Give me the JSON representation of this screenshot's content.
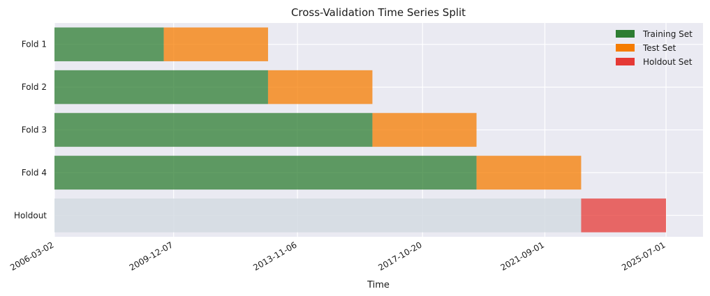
{
  "chart_data": {
    "type": "bar",
    "orientation": "horizontal-timeline",
    "title": "Cross-Validation Time Series Split",
    "xlabel": "Time",
    "ylabel": "",
    "x_axis": "date",
    "xlim": [
      "2006-03-02",
      "2026-09-01"
    ],
    "x_ticks": [
      "2006-03-02",
      "2009-12-07",
      "2013-11-06",
      "2017-10-20",
      "2021-09-01",
      "2025-07-01"
    ],
    "categories": [
      "Fold 1",
      "Fold 2",
      "Fold 3",
      "Fold 4",
      "Holdout"
    ],
    "grid": true,
    "legend_position": "top-right",
    "series": [
      {
        "name": "Training Set",
        "color": "#2e7d32",
        "segments": [
          {
            "category": "Fold 1",
            "start": "2006-03-02",
            "end": "2009-08-15"
          },
          {
            "category": "Fold 2",
            "start": "2006-03-02",
            "end": "2012-12-01"
          },
          {
            "category": "Fold 3",
            "start": "2006-03-02",
            "end": "2016-03-20"
          },
          {
            "category": "Fold 4",
            "start": "2006-03-02",
            "end": "2019-07-05"
          }
        ]
      },
      {
        "name": "Test Set",
        "color": "#f57c00",
        "segments": [
          {
            "category": "Fold 1",
            "start": "2009-08-15",
            "end": "2012-12-01"
          },
          {
            "category": "Fold 2",
            "start": "2012-12-01",
            "end": "2016-03-20"
          },
          {
            "category": "Fold 3",
            "start": "2016-03-20",
            "end": "2019-07-05"
          },
          {
            "category": "Fold 4",
            "start": "2019-07-05",
            "end": "2022-10-25"
          }
        ]
      },
      {
        "name": "Holdout Set",
        "color": "#e53935",
        "segments": [
          {
            "category": "Holdout",
            "start": "2022-10-25",
            "end": "2025-07-01"
          }
        ]
      }
    ],
    "background_band": {
      "category": "Holdout",
      "start": "2006-03-02",
      "end": "2022-10-25",
      "color": "#d4dbe2"
    }
  }
}
